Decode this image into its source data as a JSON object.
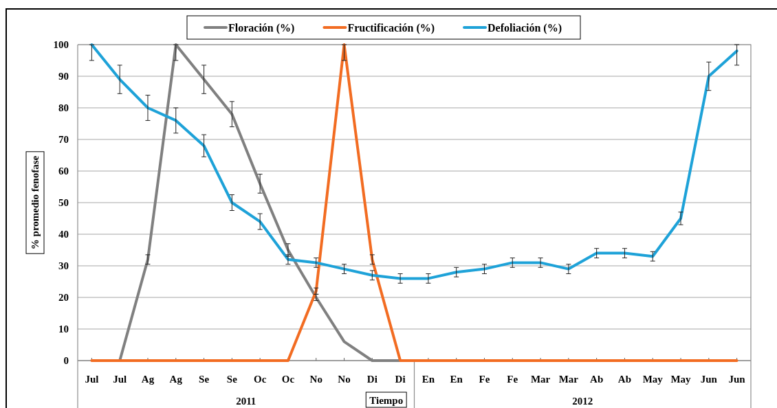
{
  "chart_data": {
    "type": "line",
    "categories": [
      "Jul",
      "Jul",
      "Ag",
      "Ag",
      "Se",
      "Se",
      "Oc",
      "Oc",
      "No",
      "No",
      "Di",
      "Di",
      "En",
      "En",
      "Fe",
      "Fe",
      "Mar",
      "Mar",
      "Ab",
      "Ab",
      "May",
      "May",
      "Jun",
      "Jun"
    ],
    "xlabel": "Tiempo",
    "ylabel": "% promedio fenofase",
    "annotations": [
      "2011",
      "2012"
    ],
    "ylim": [
      0,
      100
    ],
    "yticks": [
      0,
      10,
      20,
      30,
      40,
      50,
      60,
      70,
      80,
      90,
      100
    ],
    "grid": "y",
    "legend": "top",
    "series": [
      {
        "name": "Floración (%)",
        "color": "#808080",
        "values": [
          null,
          0,
          32,
          100,
          89,
          78,
          56,
          35,
          20,
          6,
          0,
          0,
          null,
          null,
          null,
          null,
          null,
          null,
          null,
          null,
          null,
          null,
          null,
          null
        ],
        "errors": [
          null,
          null,
          1.5,
          [
            95,
            100
          ],
          4.5,
          4,
          3,
          2,
          1,
          null,
          null,
          null,
          null,
          null,
          null,
          null,
          null,
          null,
          null,
          null,
          null,
          null,
          null,
          null
        ]
      },
      {
        "name": "Fructificación (%)",
        "color": "#f26c22",
        "values": [
          0,
          0,
          0,
          0,
          0,
          0,
          0,
          0,
          22,
          100,
          32,
          0,
          0,
          0,
          0,
          0,
          0,
          0,
          0,
          0,
          0,
          0,
          0,
          0
        ],
        "errors": [
          null,
          null,
          null,
          null,
          null,
          null,
          null,
          null,
          1,
          [
            95,
            100
          ],
          1.5,
          null,
          null,
          null,
          null,
          null,
          null,
          null,
          null,
          null,
          null,
          null,
          null,
          null
        ]
      },
      {
        "name": "Defoliación (%)",
        "color": "#1ea2d8",
        "values": [
          100,
          89,
          80,
          76,
          68,
          50,
          44,
          32,
          31,
          29,
          27,
          26,
          26,
          28,
          29,
          31,
          31,
          29,
          34,
          34,
          33,
          45,
          90,
          98
        ],
        "errors": [
          [
            95,
            100
          ],
          4.5,
          4,
          4,
          3.5,
          2.5,
          2.5,
          1.5,
          1.5,
          1.5,
          1.5,
          1.5,
          1.5,
          1.5,
          1.5,
          1.5,
          1.5,
          1.5,
          1.5,
          1.5,
          1.5,
          2,
          4.5,
          [
            93.5,
            100
          ]
        ]
      }
    ]
  }
}
